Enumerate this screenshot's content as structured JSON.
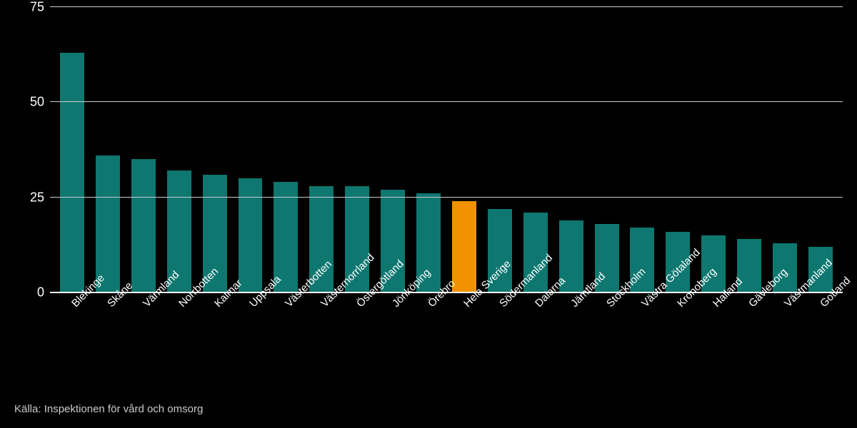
{
  "chart": {
    "type": "bar",
    "background_color": "#000000",
    "grid_color": "#cccccc",
    "baseline_color": "#ffffff",
    "axis_text_color": "#ffffff",
    "ylim": [
      0,
      75
    ],
    "yticks": [
      0,
      25,
      50,
      75
    ],
    "ytick_labels": [
      "0",
      "25",
      "50",
      "75"
    ],
    "tick_fontsize": 18,
    "xlabel_fontsize": 15,
    "xlabel_rotation_deg": -45,
    "bar_width_ratio": 0.68,
    "default_bar_color": "#0e7770",
    "highlight_bar_color": "#f29200",
    "categories": [
      "Blekinge",
      "Skåne",
      "Värmland",
      "Norrbotten",
      "Kalmar",
      "Uppsala",
      "Västerbotten",
      "Västernorrland",
      "Östergötland",
      "Jönköping",
      "Örebro",
      "Hela Sverige",
      "Södermanland",
      "Dalarna",
      "Jämtland",
      "Stockholm",
      "Västra Götaland",
      "Kronoberg",
      "Halland",
      "Gävleborg",
      "Västmanland",
      "Gotland"
    ],
    "values": [
      63,
      36,
      35,
      32,
      31,
      30,
      29,
      28,
      28,
      27,
      26,
      24,
      22,
      21,
      19,
      18,
      17,
      16,
      15,
      14,
      13,
      12
    ],
    "highlight_index": 11
  },
  "source": {
    "prefix": "Källa: ",
    "text": "Inspektionen för vård och omsorg"
  }
}
